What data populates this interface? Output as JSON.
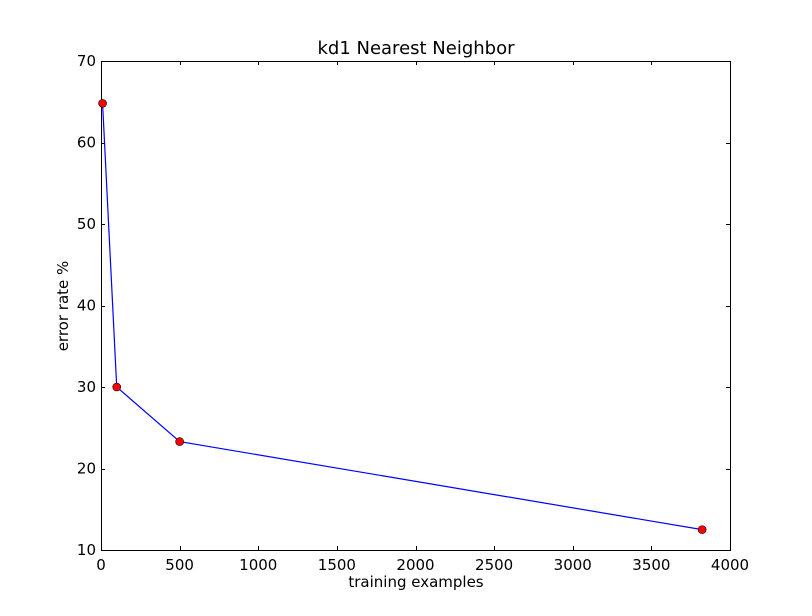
{
  "chart_data": {
    "type": "line",
    "title": "kd1 Nearest Neighbor",
    "xlabel": "training examples",
    "ylabel": "error rate %",
    "xlim": [
      0,
      4000
    ],
    "ylim": [
      10,
      70
    ],
    "xticks": [
      0,
      500,
      1000,
      1500,
      2000,
      2500,
      3000,
      3500,
      4000
    ],
    "yticks": [
      10,
      20,
      30,
      40,
      50,
      60,
      70
    ],
    "grid": false,
    "series": [
      {
        "x": [
          10,
          100,
          500,
          3823
        ],
        "y": [
          64.8,
          30.0,
          23.3,
          12.5
        ],
        "line_color": "#0000ff",
        "marker": "circle",
        "marker_color": "#ff0000"
      }
    ]
  }
}
